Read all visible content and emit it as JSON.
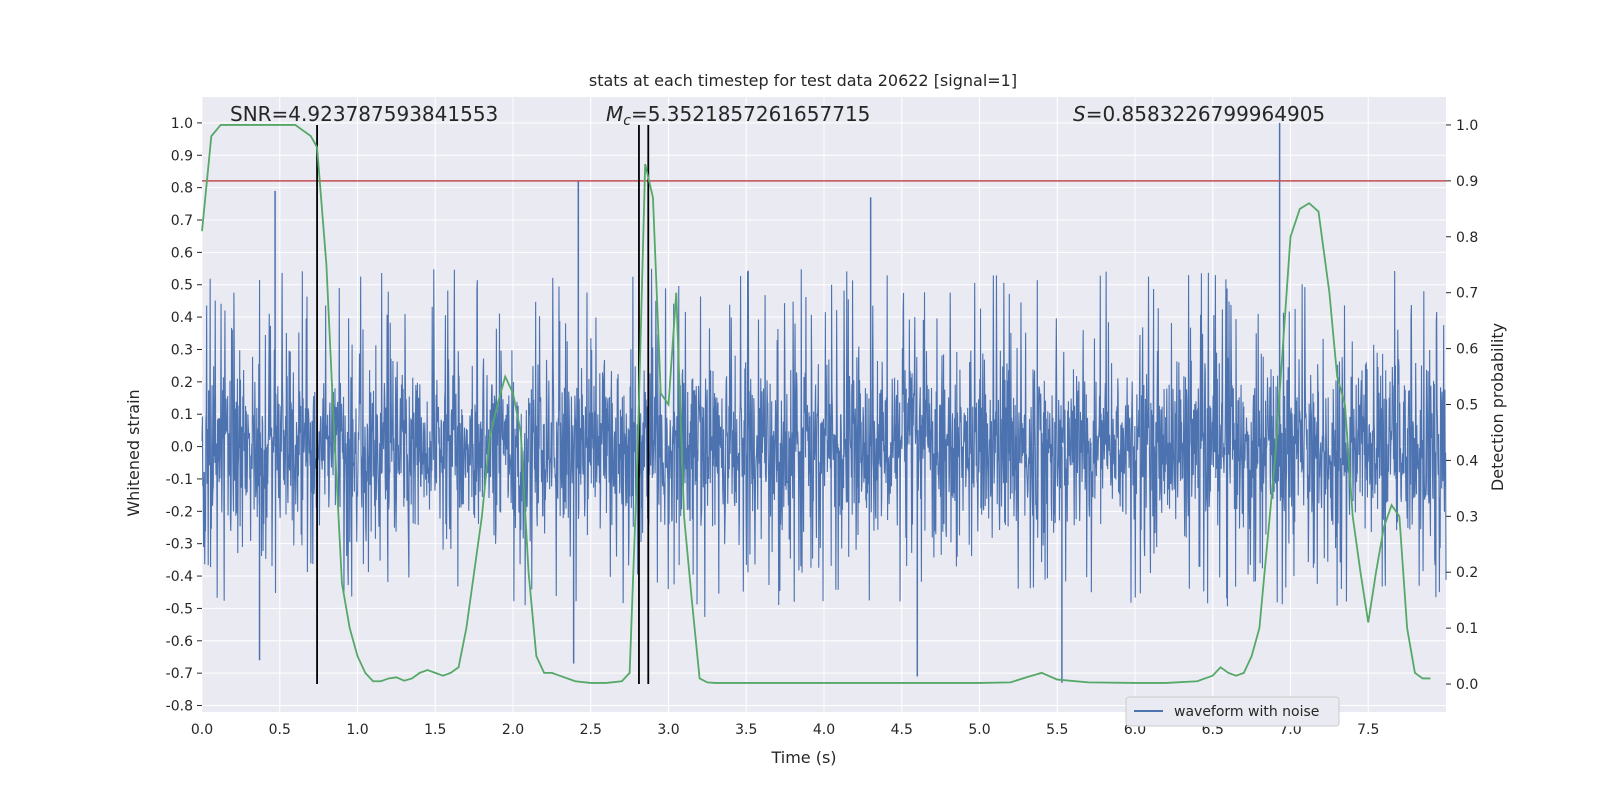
{
  "chart_data": {
    "type": "line",
    "title": "stats at each timestep for test data 20622 [signal=1]",
    "xlabel": "Time (s)",
    "ylabel": "Whitened strain",
    "ylabel_right": "Detection probability",
    "xlim": [
      0.0,
      8.0
    ],
    "ylim_left": [
      -0.82,
      1.08
    ],
    "ylim_right": [
      -0.05,
      1.05
    ],
    "x_ticks": [
      "0.0",
      "0.5",
      "1.0",
      "1.5",
      "2.0",
      "2.5",
      "3.0",
      "3.5",
      "4.0",
      "4.5",
      "5.0",
      "5.5",
      "6.0",
      "6.5",
      "7.0",
      "7.5"
    ],
    "y_left_ticks": [
      "-0.8",
      "-0.7",
      "-0.6",
      "-0.5",
      "-0.4",
      "-0.3",
      "-0.2",
      "-0.1",
      "0.0",
      "0.1",
      "0.2",
      "0.3",
      "0.4",
      "0.5",
      "0.6",
      "0.7",
      "0.8",
      "0.9",
      "1.0"
    ],
    "y_right_ticks": [
      "0.0",
      "0.1",
      "0.2",
      "0.3",
      "0.4",
      "0.5",
      "0.6",
      "0.7",
      "0.8",
      "0.9",
      "1.0"
    ],
    "grid": true,
    "legend_position": "bottom-right",
    "colors": {
      "strain": "#4c72b0",
      "probability": "#55a868",
      "threshold": "#c44e52",
      "markers": "#000000",
      "background": "#eaeaf2",
      "grid": "#ffffff"
    },
    "annotations": {
      "snr": "SNR=4.923787593841553",
      "mc_label": "M",
      "mc_sub": "c",
      "mc_value": "=5.3521857261657715",
      "s_label": "S",
      "s_value": "=0.8583226799964905"
    },
    "series": [
      {
        "name": "waveform with noise",
        "axis": "left",
        "kind": "noise",
        "typical_range": [
          -0.45,
          0.5
        ],
        "notable_peaks": [
          {
            "x": 6.93,
            "y": 1.0
          },
          {
            "x": 2.42,
            "y": 0.82
          },
          {
            "x": 0.47,
            "y": 0.79
          },
          {
            "x": 4.3,
            "y": 0.77
          },
          {
            "x": 4.6,
            "y": -0.71
          },
          {
            "x": 5.53,
            "y": -0.73
          },
          {
            "x": 0.37,
            "y": -0.66
          },
          {
            "x": 2.39,
            "y": -0.67
          }
        ]
      },
      {
        "name": "",
        "axis": "right",
        "kind": "probability",
        "x": [
          0.0,
          0.06,
          0.12,
          0.2,
          0.3,
          0.4,
          0.5,
          0.55,
          0.6,
          0.65,
          0.7,
          0.74,
          0.8,
          0.85,
          0.9,
          0.95,
          1.0,
          1.05,
          1.1,
          1.15,
          1.2,
          1.25,
          1.3,
          1.35,
          1.4,
          1.45,
          1.5,
          1.55,
          1.6,
          1.65,
          1.7,
          1.75,
          1.8,
          1.85,
          1.9,
          1.95,
          2.0,
          2.05,
          2.1,
          2.15,
          2.2,
          2.25,
          2.3,
          2.4,
          2.5,
          2.6,
          2.7,
          2.75,
          2.8,
          2.85,
          2.9,
          2.95,
          3.0,
          3.05,
          3.1,
          3.15,
          3.2,
          3.25,
          3.3,
          3.4,
          3.5,
          3.7,
          4.0,
          4.3,
          4.5,
          5.0,
          5.2,
          5.3,
          5.4,
          5.5,
          5.7,
          6.0,
          6.2,
          6.4,
          6.5,
          6.55,
          6.6,
          6.65,
          6.7,
          6.75,
          6.8,
          6.9,
          7.0,
          7.06,
          7.12,
          7.18,
          7.25,
          7.3,
          7.35,
          7.4,
          7.45,
          7.5,
          7.55,
          7.6,
          7.65,
          7.7,
          7.75,
          7.8,
          7.85,
          7.9
        ],
        "y": [
          0.81,
          0.98,
          1.0,
          1.0,
          1.0,
          1.0,
          1.0,
          1.0,
          1.0,
          0.99,
          0.98,
          0.96,
          0.75,
          0.45,
          0.18,
          0.1,
          0.05,
          0.02,
          0.005,
          0.005,
          0.01,
          0.012,
          0.006,
          0.01,
          0.02,
          0.025,
          0.02,
          0.015,
          0.02,
          0.03,
          0.1,
          0.2,
          0.3,
          0.44,
          0.5,
          0.55,
          0.52,
          0.45,
          0.2,
          0.05,
          0.02,
          0.02,
          0.015,
          0.005,
          0.002,
          0.002,
          0.005,
          0.02,
          0.4,
          0.93,
          0.87,
          0.52,
          0.5,
          0.7,
          0.3,
          0.15,
          0.01,
          0.003,
          0.002,
          0.002,
          0.002,
          0.002,
          0.002,
          0.002,
          0.002,
          0.002,
          0.003,
          0.012,
          0.02,
          0.008,
          0.003,
          0.002,
          0.002,
          0.005,
          0.015,
          0.03,
          0.02,
          0.015,
          0.02,
          0.05,
          0.1,
          0.4,
          0.8,
          0.85,
          0.86,
          0.845,
          0.7,
          0.55,
          0.5,
          0.3,
          0.2,
          0.11,
          0.2,
          0.28,
          0.32,
          0.3,
          0.1,
          0.02,
          0.01,
          0.01
        ]
      },
      {
        "name": "",
        "axis": "right",
        "kind": "threshold",
        "y": 0.9
      }
    ],
    "marker_lines_x": [
      0.74,
      2.81,
      2.87
    ]
  }
}
